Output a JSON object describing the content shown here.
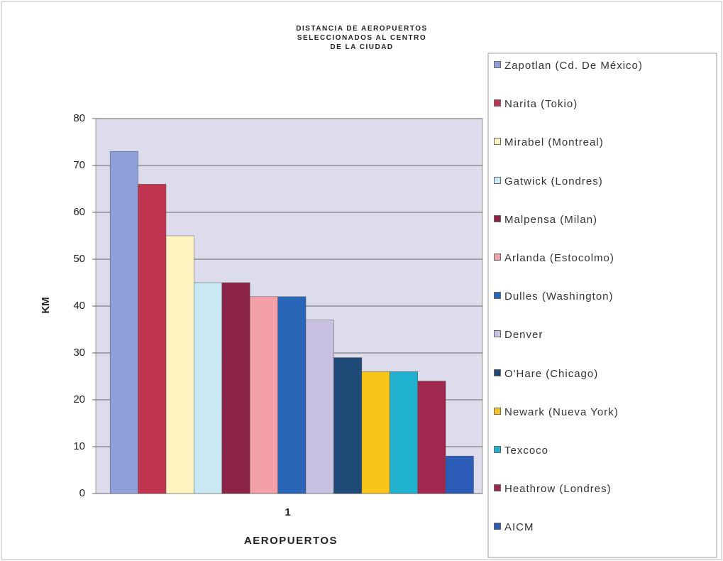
{
  "chart_data": {
    "type": "bar",
    "title": "DISTANCIA DE AEROPUERTOS SELECCIONADOS AL CENTRO DE LA CIUDAD",
    "x_label": "AEROPUERTOS",
    "y_label": "KM",
    "categories": [
      "1"
    ],
    "series": [
      {
        "name": "Zapotlan (Cd. De México)",
        "color": "#8f9fd8",
        "values": [
          73
        ]
      },
      {
        "name": "Narita (Tokio)",
        "color": "#c0344f",
        "values": [
          66
        ]
      },
      {
        "name": "Mirabel (Montreal)",
        "color": "#fff3c0",
        "values": [
          55
        ]
      },
      {
        "name": "Gatwick (Londres)",
        "color": "#c8e8f4",
        "values": [
          45
        ]
      },
      {
        "name": "Malpensa (Milan)",
        "color": "#8c2448",
        "values": [
          45
        ]
      },
      {
        "name": "Arlanda (Estocolmo)",
        "color": "#f4a0a8",
        "values": [
          42
        ]
      },
      {
        "name": "Dulles (Washington)",
        "color": "#2a66b8",
        "values": [
          42
        ]
      },
      {
        "name": "Denver",
        "color": "#c8c0e0",
        "values": [
          37
        ]
      },
      {
        "name": "O'Hare (Chicago)",
        "color": "#1f4a78",
        "values": [
          29
        ]
      },
      {
        "name": "Newark (Nueva York)",
        "color": "#f8c418",
        "values": [
          26
        ]
      },
      {
        "name": "Texcoco",
        "color": "#20b0d0",
        "values": [
          26
        ]
      },
      {
        "name": "Heathrow (Londres)",
        "color": "#a02850",
        "values": [
          24
        ]
      },
      {
        "name": "AICM",
        "color": "#2a5cb8",
        "values": [
          8
        ]
      }
    ],
    "ylim": [
      0,
      80
    ],
    "yticks": [
      0,
      10,
      20,
      30,
      40,
      50,
      60,
      70,
      80
    ],
    "grid": true,
    "legend": "right"
  }
}
